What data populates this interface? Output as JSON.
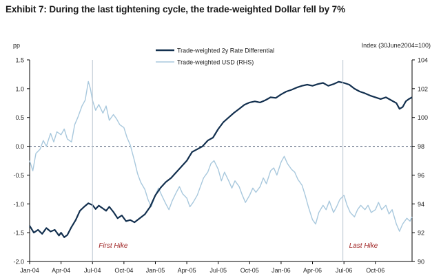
{
  "title": "Exhibit 7: During the last tightening cycle, the trade-weighted Dollar fell by 7%",
  "chart_data": {
    "type": "line",
    "left_axis": {
      "label": "pp",
      "ticks": [
        "1.5",
        "1.0",
        "0.5",
        "0.0",
        "-0.5",
        "-1.0",
        "-1.5",
        "-2.0"
      ],
      "range": [
        -2.0,
        1.5
      ]
    },
    "right_axis": {
      "label": "Index (30June2004=100)",
      "ticks": [
        "104",
        "102",
        "100",
        "98",
        "96",
        "94",
        "92",
        "90"
      ],
      "range": [
        90,
        104
      ]
    },
    "x_ticks": [
      "Jan-04",
      "Apr-04",
      "Jul-04",
      "Oct-04",
      "Jan-05",
      "Apr-05",
      "Jul-05",
      "Oct-05",
      "Jan-06",
      "Apr-06",
      "Jul-06",
      "Oct-06"
    ],
    "x_range_months": [
      0,
      36.5
    ],
    "zero_line": 0.0,
    "annotations": [
      {
        "text": "First Hike",
        "month": 6.0
      },
      {
        "text": "Last Hike",
        "month": 29.9
      }
    ],
    "series": [
      {
        "name": "Trade-weighted 2y Rate Differential",
        "axis": "left",
        "color": "#13304f",
        "points": [
          [
            0,
            -1.38
          ],
          [
            0.4,
            -1.5
          ],
          [
            0.8,
            -1.45
          ],
          [
            1.2,
            -1.52
          ],
          [
            1.6,
            -1.42
          ],
          [
            2.0,
            -1.48
          ],
          [
            2.4,
            -1.45
          ],
          [
            2.8,
            -1.55
          ],
          [
            3.0,
            -1.5
          ],
          [
            3.3,
            -1.58
          ],
          [
            3.6,
            -1.54
          ],
          [
            4.0,
            -1.4
          ],
          [
            4.4,
            -1.28
          ],
          [
            4.8,
            -1.12
          ],
          [
            5.2,
            -1.05
          ],
          [
            5.6,
            -0.99
          ],
          [
            6.0,
            -1.02
          ],
          [
            6.3,
            -1.09
          ],
          [
            6.6,
            -1.03
          ],
          [
            7.0,
            -1.08
          ],
          [
            7.3,
            -1.12
          ],
          [
            7.6,
            -1.05
          ],
          [
            8.0,
            -1.14
          ],
          [
            8.4,
            -1.25
          ],
          [
            8.8,
            -1.2
          ],
          [
            9.2,
            -1.3
          ],
          [
            9.6,
            -1.28
          ],
          [
            10.0,
            -1.32
          ],
          [
            10.5,
            -1.25
          ],
          [
            11.0,
            -1.18
          ],
          [
            11.5,
            -1.05
          ],
          [
            12.0,
            -0.85
          ],
          [
            12.5,
            -0.72
          ],
          [
            13.0,
            -0.62
          ],
          [
            13.5,
            -0.55
          ],
          [
            14.0,
            -0.45
          ],
          [
            14.5,
            -0.35
          ],
          [
            15.0,
            -0.25
          ],
          [
            15.5,
            -0.1
          ],
          [
            16.0,
            -0.05
          ],
          [
            16.5,
            0.0
          ],
          [
            17.0,
            0.1
          ],
          [
            17.5,
            0.15
          ],
          [
            18.0,
            0.3
          ],
          [
            18.5,
            0.42
          ],
          [
            19.0,
            0.5
          ],
          [
            19.5,
            0.58
          ],
          [
            20.0,
            0.65
          ],
          [
            20.5,
            0.72
          ],
          [
            21.0,
            0.76
          ],
          [
            21.5,
            0.78
          ],
          [
            22.0,
            0.76
          ],
          [
            22.5,
            0.8
          ],
          [
            23.0,
            0.85
          ],
          [
            23.5,
            0.84
          ],
          [
            24.0,
            0.9
          ],
          [
            24.5,
            0.95
          ],
          [
            25.0,
            0.98
          ],
          [
            25.5,
            1.02
          ],
          [
            26.0,
            1.05
          ],
          [
            26.5,
            1.07
          ],
          [
            27.0,
            1.05
          ],
          [
            27.5,
            1.08
          ],
          [
            28.0,
            1.1
          ],
          [
            28.5,
            1.05
          ],
          [
            29.0,
            1.08
          ],
          [
            29.5,
            1.12
          ],
          [
            30.0,
            1.1
          ],
          [
            30.5,
            1.07
          ],
          [
            31.0,
            1.0
          ],
          [
            31.5,
            0.95
          ],
          [
            32.0,
            0.92
          ],
          [
            32.5,
            0.88
          ],
          [
            33.0,
            0.85
          ],
          [
            33.5,
            0.82
          ],
          [
            34.0,
            0.85
          ],
          [
            34.5,
            0.8
          ],
          [
            35.0,
            0.75
          ],
          [
            35.3,
            0.65
          ],
          [
            35.6,
            0.68
          ],
          [
            35.9,
            0.78
          ],
          [
            36.2,
            0.82
          ],
          [
            36.5,
            0.85
          ]
        ]
      },
      {
        "name": "Trade-weighted USD (RHS)",
        "axis": "right",
        "color": "#a8c8dd",
        "points": [
          [
            0,
            97.0
          ],
          [
            0.3,
            96.3
          ],
          [
            0.6,
            97.5
          ],
          [
            1.0,
            97.8
          ],
          [
            1.3,
            98.4
          ],
          [
            1.6,
            98.0
          ],
          [
            2.0,
            98.9
          ],
          [
            2.3,
            98.3
          ],
          [
            2.6,
            99.0
          ],
          [
            3.0,
            98.8
          ],
          [
            3.3,
            99.2
          ],
          [
            3.6,
            98.5
          ],
          [
            4.0,
            98.3
          ],
          [
            4.3,
            99.5
          ],
          [
            4.6,
            100.0
          ],
          [
            5.0,
            100.8
          ],
          [
            5.3,
            101.2
          ],
          [
            5.6,
            102.5
          ],
          [
            5.8,
            102.0
          ],
          [
            6.0,
            101.2
          ],
          [
            6.3,
            100.5
          ],
          [
            6.6,
            100.9
          ],
          [
            7.0,
            100.3
          ],
          [
            7.3,
            100.8
          ],
          [
            7.6,
            99.8
          ],
          [
            8.0,
            100.2
          ],
          [
            8.3,
            99.9
          ],
          [
            8.6,
            99.5
          ],
          [
            9.0,
            99.3
          ],
          [
            9.3,
            98.6
          ],
          [
            9.6,
            98.1
          ],
          [
            10.0,
            97.0
          ],
          [
            10.3,
            96.1
          ],
          [
            10.6,
            95.5
          ],
          [
            11.0,
            95.0
          ],
          [
            11.3,
            94.3
          ],
          [
            11.6,
            93.8
          ],
          [
            12.0,
            94.6
          ],
          [
            12.3,
            95.1
          ],
          [
            12.6,
            94.6
          ],
          [
            13.0,
            94.0
          ],
          [
            13.3,
            93.6
          ],
          [
            13.6,
            94.2
          ],
          [
            14.0,
            94.8
          ],
          [
            14.3,
            95.2
          ],
          [
            14.6,
            94.7
          ],
          [
            15.0,
            94.4
          ],
          [
            15.3,
            93.8
          ],
          [
            15.6,
            94.1
          ],
          [
            16.0,
            94.6
          ],
          [
            16.3,
            95.2
          ],
          [
            16.6,
            95.8
          ],
          [
            17.0,
            96.2
          ],
          [
            17.3,
            96.8
          ],
          [
            17.6,
            97.0
          ],
          [
            18.0,
            96.4
          ],
          [
            18.3,
            95.6
          ],
          [
            18.6,
            96.2
          ],
          [
            19.0,
            95.6
          ],
          [
            19.3,
            95.1
          ],
          [
            19.6,
            95.6
          ],
          [
            20.0,
            95.2
          ],
          [
            20.3,
            94.6
          ],
          [
            20.6,
            94.1
          ],
          [
            21.0,
            94.6
          ],
          [
            21.3,
            95.1
          ],
          [
            21.6,
            94.8
          ],
          [
            22.0,
            95.2
          ],
          [
            22.3,
            95.8
          ],
          [
            22.6,
            95.4
          ],
          [
            23.0,
            96.3
          ],
          [
            23.3,
            96.5
          ],
          [
            23.6,
            96.0
          ],
          [
            24.0,
            96.9
          ],
          [
            24.3,
            97.3
          ],
          [
            24.6,
            96.8
          ],
          [
            25.0,
            96.4
          ],
          [
            25.3,
            96.2
          ],
          [
            25.6,
            95.7
          ],
          [
            26.0,
            95.3
          ],
          [
            26.3,
            94.6
          ],
          [
            26.6,
            93.8
          ],
          [
            27.0,
            92.9
          ],
          [
            27.3,
            92.6
          ],
          [
            27.6,
            93.4
          ],
          [
            28.0,
            93.9
          ],
          [
            28.3,
            93.6
          ],
          [
            28.6,
            94.2
          ],
          [
            29.0,
            93.4
          ],
          [
            29.3,
            93.8
          ],
          [
            29.6,
            94.3
          ],
          [
            30.0,
            94.6
          ],
          [
            30.3,
            93.9
          ],
          [
            30.6,
            93.4
          ],
          [
            31.0,
            93.1
          ],
          [
            31.3,
            93.6
          ],
          [
            31.6,
            93.9
          ],
          [
            32.0,
            93.6
          ],
          [
            32.3,
            93.9
          ],
          [
            32.6,
            93.4
          ],
          [
            33.0,
            93.6
          ],
          [
            33.3,
            94.1
          ],
          [
            33.6,
            93.6
          ],
          [
            34.0,
            93.9
          ],
          [
            34.3,
            93.3
          ],
          [
            34.6,
            93.6
          ],
          [
            35.0,
            92.6
          ],
          [
            35.3,
            92.1
          ],
          [
            35.6,
            92.6
          ],
          [
            36.0,
            93.0
          ],
          [
            36.3,
            92.8
          ],
          [
            36.5,
            93.1
          ]
        ]
      }
    ]
  }
}
